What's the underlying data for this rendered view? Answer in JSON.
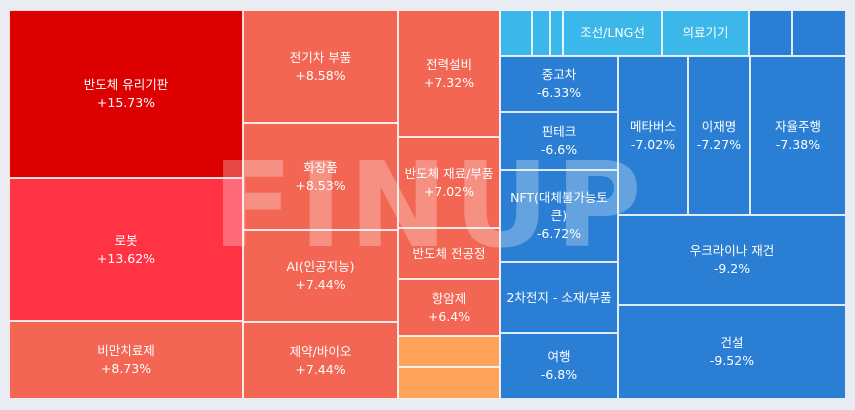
{
  "chart_data": {
    "type": "treemap",
    "watermark": "FINUP",
    "items": [
      {
        "id": "t1",
        "name": "반도체 유리기판",
        "value": "+15.73%",
        "color": "#dd0000"
      },
      {
        "id": "t2",
        "name": "로봇",
        "value": "+13.62%",
        "color": "#ff3344"
      },
      {
        "id": "t3",
        "name": "비만치료제",
        "value": "+8.73%",
        "color": "#f26653"
      },
      {
        "id": "t4",
        "name": "전기차 부품",
        "value": "+8.58%",
        "color": "#f26653"
      },
      {
        "id": "t5",
        "name": "화장품",
        "value": "+8.53%",
        "color": "#f26653"
      },
      {
        "id": "t6",
        "name": "AI(인공지능)",
        "value": "+7.44%",
        "color": "#f26653"
      },
      {
        "id": "t7",
        "name": "제약/바이오",
        "value": "+7.44%",
        "color": "#f26653"
      },
      {
        "id": "t8",
        "name": "전력설비",
        "value": "+7.32%",
        "color": "#f26653"
      },
      {
        "id": "t9",
        "name": "반도체 재료/부품",
        "value": "+7.02%",
        "color": "#f26653"
      },
      {
        "id": "t10",
        "name": "반도체 전공정",
        "value": "",
        "color": "#f26653"
      },
      {
        "id": "t11",
        "name": "항암제",
        "value": "+6.4%",
        "color": "#f26653"
      },
      {
        "id": "t12",
        "name": "",
        "value": "",
        "color": "#ffa35a"
      },
      {
        "id": "t13",
        "name": "",
        "value": "",
        "color": "#ffa35a"
      },
      {
        "id": "t14",
        "name": "",
        "value": "",
        "color": "#3cb7ea"
      },
      {
        "id": "t15",
        "name": "",
        "value": "",
        "color": "#3cb7ea"
      },
      {
        "id": "t16",
        "name": "",
        "value": "",
        "color": "#3cb7ea"
      },
      {
        "id": "t17",
        "name": "조선/LNG선",
        "value": "",
        "color": "#3cb7ea"
      },
      {
        "id": "t18",
        "name": "의료기기",
        "value": "",
        "color": "#3cb7ea"
      },
      {
        "id": "t19",
        "name": "",
        "value": "",
        "color": "#2a7fd4"
      },
      {
        "id": "t20",
        "name": "",
        "value": "",
        "color": "#2a7fd4"
      },
      {
        "id": "t21",
        "name": "중고차",
        "value": "-6.33%",
        "color": "#2a7fd4"
      },
      {
        "id": "t22",
        "name": "핀테크",
        "value": "-6.6%",
        "color": "#2a7fd4"
      },
      {
        "id": "t23",
        "name": "NFT(대체불가능토큰)",
        "value": "-6.72%",
        "color": "#2a7fd4"
      },
      {
        "id": "t24",
        "name": "2차전지 - 소재/부품",
        "value": "",
        "color": "#2a7fd4"
      },
      {
        "id": "t25",
        "name": "여행",
        "value": "-6.8%",
        "color": "#2a7fd4"
      },
      {
        "id": "t26",
        "name": "메타버스",
        "value": "-7.02%",
        "color": "#2a7fd4"
      },
      {
        "id": "t27",
        "name": "이재명",
        "value": "-7.27%",
        "color": "#2a7fd4"
      },
      {
        "id": "t28",
        "name": "자율주행",
        "value": "-7.38%",
        "color": "#2a7fd4"
      },
      {
        "id": "t29",
        "name": "우크라이나 재건",
        "value": "-9.2%",
        "color": "#2a7fd4"
      },
      {
        "id": "t30",
        "name": "건설",
        "value": "-9.52%",
        "color": "#2a7fd4"
      }
    ]
  }
}
